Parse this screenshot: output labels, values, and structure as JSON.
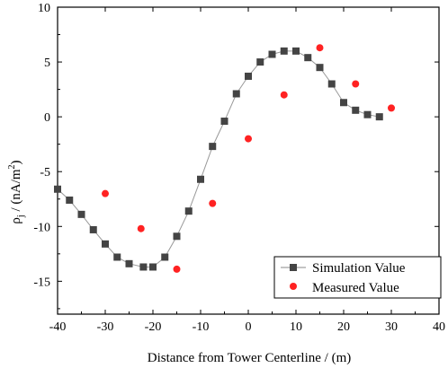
{
  "chart_data": {
    "type": "line",
    "xlabel": "Distance from Tower Centerline / (m)",
    "ylabel_parts": {
      "base": "ρ",
      "sub": "j",
      "mid": " / (nA/m",
      "sup": "2",
      "end": ")"
    },
    "xlim": [
      -40,
      40
    ],
    "ylim": [
      -18,
      10
    ],
    "x_ticks": [
      -40,
      -30,
      -20,
      -10,
      0,
      10,
      20,
      30,
      40
    ],
    "y_ticks": [
      10,
      5,
      0,
      -5,
      -10,
      -15
    ],
    "legend_position": "bottom-right",
    "series": [
      {
        "name": "Simulation Value",
        "color": "#444444",
        "marker": "square",
        "line": true,
        "points": [
          [
            -40,
            -6.6
          ],
          [
            -37.5,
            -7.6
          ],
          [
            -35,
            -8.9
          ],
          [
            -32.5,
            -10.3
          ],
          [
            -30,
            -11.6
          ],
          [
            -27.5,
            -12.8
          ],
          [
            -25,
            -13.4
          ],
          [
            -22,
            -13.7
          ],
          [
            -20,
            -13.7
          ],
          [
            -17.5,
            -12.8
          ],
          [
            -15,
            -10.9
          ],
          [
            -12.5,
            -8.6
          ],
          [
            -10,
            -5.7
          ],
          [
            -7.5,
            -2.7
          ],
          [
            -5,
            -0.4
          ],
          [
            -2.5,
            2.1
          ],
          [
            0,
            3.7
          ],
          [
            2.5,
            5.0
          ],
          [
            5,
            5.7
          ],
          [
            7.5,
            6.0
          ],
          [
            10,
            6.0
          ],
          [
            12.5,
            5.4
          ],
          [
            15,
            4.5
          ],
          [
            17.5,
            3.0
          ],
          [
            20,
            1.3
          ],
          [
            22.5,
            0.6
          ],
          [
            25,
            0.2
          ],
          [
            27.5,
            0.0
          ]
        ]
      },
      {
        "name": "Measured Value",
        "color": "#ff2222",
        "marker": "circle",
        "line": false,
        "points": [
          [
            -30,
            -7.0
          ],
          [
            -22.5,
            -10.2
          ],
          [
            -15,
            -13.9
          ],
          [
            -7.5,
            -7.9
          ],
          [
            0,
            -2.0
          ],
          [
            7.5,
            2.0
          ],
          [
            15,
            6.3
          ],
          [
            22.5,
            3.0
          ],
          [
            30,
            0.8
          ]
        ]
      }
    ]
  }
}
